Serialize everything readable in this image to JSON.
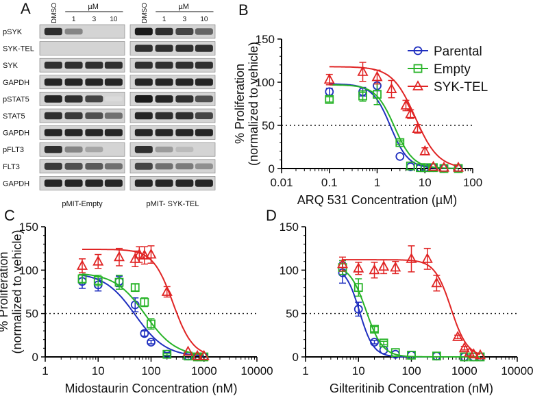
{
  "colors": {
    "Parental": "#1f2fbf",
    "Empty": "#27b327",
    "SYK-TEL": "#e02424"
  },
  "western_blot": {
    "panel_label": "A",
    "rows": [
      "pSYK",
      "SYK-TEL",
      "SYK",
      "GAPDH",
      "pSTAT5",
      "STAT5",
      "GAPDH",
      "pFLT3",
      "FLT3",
      "GAPDH"
    ],
    "blots": [
      {
        "caption": "pMIT-Empty",
        "col_labels": [
          "DMSO",
          "1",
          "3",
          "10"
        ],
        "unit": "µM",
        "intensities": [
          [
            0.85,
            0.45,
            0,
            0
          ],
          [
            0,
            0,
            0,
            0
          ],
          [
            0.85,
            0.85,
            0.85,
            0.85
          ],
          [
            0.9,
            0.9,
            0.9,
            0.9
          ],
          [
            0.9,
            0.85,
            0.75,
            0.05
          ],
          [
            0.85,
            0.8,
            0.7,
            0.55
          ],
          [
            0.9,
            0.9,
            0.9,
            0.9
          ],
          [
            0.85,
            0.45,
            0.3,
            0
          ],
          [
            0.8,
            0.7,
            0.65,
            0.55
          ],
          [
            0.9,
            0.9,
            0.9,
            0.9
          ]
        ]
      },
      {
        "caption": "pMIT- SYK-TEL",
        "col_labels": [
          "DMSO",
          "1",
          "3",
          "10"
        ],
        "unit": "µM",
        "intensities": [
          [
            0.95,
            0.85,
            0.75,
            0.6
          ],
          [
            0.85,
            0.85,
            0.85,
            0.85
          ],
          [
            0.85,
            0.85,
            0.85,
            0.85
          ],
          [
            0.9,
            0.9,
            0.9,
            0.9
          ],
          [
            0.95,
            0.9,
            0.85,
            0.7
          ],
          [
            0.9,
            0.85,
            0.85,
            0.75
          ],
          [
            0.9,
            0.9,
            0.9,
            0.9
          ],
          [
            0.85,
            0.35,
            0.2,
            0
          ],
          [
            0.75,
            0.55,
            0.5,
            0.4
          ],
          [
            0.9,
            0.9,
            0.9,
            0.9
          ]
        ]
      }
    ]
  },
  "chart_data": [
    {
      "panel_label": "B",
      "type": "line",
      "xscale": "log",
      "xlabel": "ARQ 531 Concentration (µM)",
      "ylabel": "% Proliferation",
      "ylabel2": "(normalized to vehicle)",
      "xlim": [
        0.01,
        100
      ],
      "ylim": [
        0,
        150
      ],
      "xticks": [
        0.01,
        0.1,
        1,
        10,
        100
      ],
      "xtick_labels": [
        "0.01",
        "0.1",
        "1",
        "10",
        "100"
      ],
      "yticks": [
        0,
        50,
        100,
        150
      ],
      "reference_line_y": 50,
      "legend": [
        "Parental",
        "Empty",
        "SYK-TEL"
      ],
      "series": [
        {
          "name": "Parental",
          "marker": "circle",
          "x": [
            0.1,
            0.5,
            1,
            3,
            5,
            8,
            10,
            15,
            25,
            50
          ],
          "y": [
            89,
            89,
            96,
            14,
            2,
            1,
            1,
            1,
            0,
            0
          ],
          "err": [
            4,
            5,
            6,
            0,
            0,
            0,
            0,
            0,
            0,
            0
          ],
          "fit": {
            "top": 98,
            "bottom": 0,
            "ic50": 1.9,
            "hill": 2.3
          }
        },
        {
          "name": "Empty",
          "marker": "square",
          "x": [
            0.1,
            0.5,
            1,
            3,
            5,
            8,
            10,
            15,
            25,
            50
          ],
          "y": [
            80,
            84,
            86,
            30,
            3,
            1,
            1,
            1,
            0,
            0
          ],
          "err": [
            3,
            6,
            12,
            2,
            0,
            0,
            0,
            0,
            0,
            0
          ],
          "fit": {
            "top": 97,
            "bottom": 0,
            "ic50": 2.3,
            "hill": 2.2
          }
        },
        {
          "name": "SYK-TEL",
          "marker": "triangle",
          "x": [
            0.1,
            0.5,
            1,
            2,
            4,
            5,
            7,
            10,
            15,
            25,
            50
          ],
          "y": [
            103,
            112,
            106,
            92,
            73,
            63,
            46,
            20,
            2,
            1,
            1
          ],
          "err": [
            6,
            11,
            8,
            10,
            6,
            5,
            5,
            4,
            0,
            0,
            0
          ],
          "fit": {
            "top": 118,
            "bottom": 0,
            "ic50": 6.3,
            "hill": 1.8
          }
        }
      ]
    },
    {
      "panel_label": "C",
      "type": "line",
      "xscale": "log",
      "xlabel": "Midostaurin Concentration (nM)",
      "ylabel": "% Proliferation",
      "ylabel2": "(normalized to vehicle)",
      "xlim": [
        1,
        10000
      ],
      "ylim": [
        0,
        150
      ],
      "xticks": [
        1,
        10,
        100,
        1000,
        10000
      ],
      "xtick_labels": [
        "1",
        "10",
        "100",
        "1000",
        "10000"
      ],
      "yticks": [
        0,
        50,
        100,
        150
      ],
      "reference_line_y": 50,
      "series": [
        {
          "name": "Parental",
          "marker": "circle",
          "x": [
            5,
            10,
            25,
            50,
            75,
            100,
            200,
            500,
            750,
            1000
          ],
          "y": [
            87,
            83,
            87,
            60,
            27,
            17,
            3,
            1,
            0,
            0
          ],
          "err": [
            8,
            7,
            6,
            8,
            3,
            2,
            2,
            0,
            0,
            0
          ],
          "fit": {
            "top": 97,
            "bottom": 0,
            "ic50": 50,
            "hill": 1.5
          }
        },
        {
          "name": "Empty",
          "marker": "square",
          "x": [
            5,
            10,
            25,
            50,
            75,
            100,
            200,
            500,
            750,
            1000
          ],
          "y": [
            90,
            88,
            86,
            80,
            63,
            38,
            3,
            1,
            0,
            0
          ],
          "err": [
            5,
            6,
            8,
            4,
            5,
            6,
            1,
            0,
            0,
            0
          ],
          "fit": {
            "top": 97,
            "bottom": 0,
            "ic50": 78,
            "hill": 1.5
          }
        },
        {
          "name": "SYK-TEL",
          "marker": "triangle",
          "x": [
            5,
            10,
            25,
            50,
            60,
            75,
            100,
            200,
            500,
            750,
            1000
          ],
          "y": [
            105,
            110,
            115,
            113,
            118,
            117,
            118,
            75,
            6,
            1,
            1
          ],
          "err": [
            8,
            8,
            10,
            9,
            9,
            10,
            10,
            6,
            0,
            0,
            0
          ],
          "fit": {
            "top": 124,
            "bottom": 0,
            "ic50": 260,
            "hill": 2.3
          }
        }
      ]
    },
    {
      "panel_label": "D",
      "type": "line",
      "xscale": "log",
      "xlabel": "Gilteritinib Concentration (nM)",
      "ylabel": "",
      "ylabel2": "",
      "xlim": [
        1,
        10000
      ],
      "ylim": [
        0,
        150
      ],
      "xticks": [
        1,
        10,
        100,
        1000,
        10000
      ],
      "xtick_labels": [
        "1",
        "10",
        "100",
        "1000",
        "10000"
      ],
      "yticks": [
        0,
        50,
        100,
        150
      ],
      "reference_line_y": 50,
      "series": [
        {
          "name": "Parental",
          "marker": "circle",
          "x": [
            5,
            10,
            20,
            30,
            50,
            100,
            300,
            1000,
            1500,
            2000
          ],
          "y": [
            97,
            55,
            17,
            8,
            3,
            2,
            1,
            0,
            0,
            0
          ],
          "err": [
            12,
            8,
            2,
            0,
            0,
            0,
            0,
            0,
            0,
            0
          ],
          "fit": {
            "top": 104,
            "bottom": 0,
            "ic50": 10.5,
            "hill": 3.3
          }
        },
        {
          "name": "Empty",
          "marker": "square",
          "x": [
            5,
            10,
            20,
            30,
            50,
            100,
            300,
            1000,
            1500,
            2000
          ],
          "y": [
            103,
            80,
            32,
            16,
            5,
            2,
            1,
            0,
            0,
            0
          ],
          "err": [
            8,
            10,
            3,
            2,
            0,
            0,
            0,
            0,
            0,
            0
          ],
          "fit": {
            "top": 106,
            "bottom": 0,
            "ic50": 14,
            "hill": 2.8
          }
        },
        {
          "name": "SYK-TEL",
          "marker": "triangle",
          "x": [
            5,
            10,
            20,
            30,
            50,
            100,
            200,
            300,
            750,
            1000,
            1250,
            1500,
            2000
          ],
          "y": [
            107,
            102,
            100,
            104,
            103,
            113,
            113,
            85,
            23,
            10,
            5,
            3,
            2
          ],
          "err": [
            8,
            7,
            9,
            8,
            7,
            15,
            12,
            9,
            2,
            2,
            0,
            0,
            0
          ],
          "fit": {
            "top": 112,
            "bottom": 0,
            "ic50": 560,
            "hill": 2.8
          }
        }
      ]
    }
  ]
}
